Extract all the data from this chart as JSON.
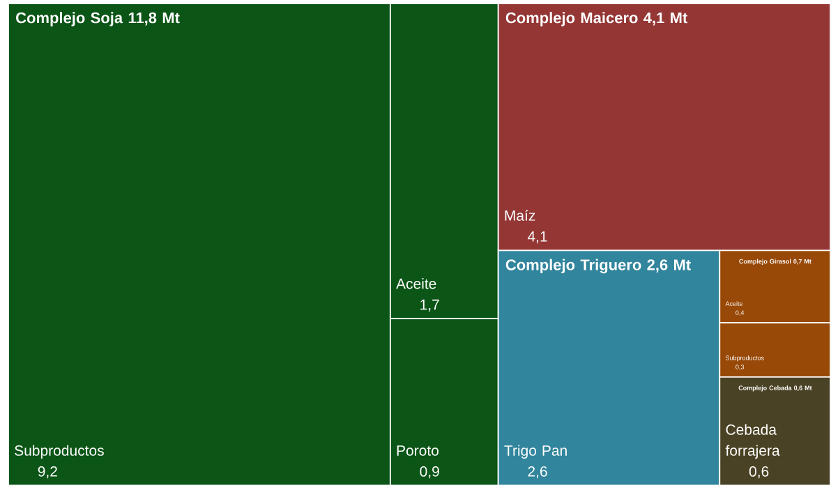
{
  "chart_data": {
    "type": "other",
    "categories": [
      "Subproductos",
      "Aceite",
      "Poroto",
      "Maíz",
      "Trigo Pan",
      "Aceite",
      "Subproductos",
      "Cebada forrajera"
    ],
    "series": [
      {
        "name": "Complejo Soja 11,8 Mt",
        "color": "#0b5517",
        "values": [
          9.2,
          1.7,
          0.9,
          null,
          null,
          null,
          null,
          null
        ],
        "value_labels": [
          "9,2",
          "1,7",
          "0,9",
          null,
          null,
          null,
          null,
          null
        ]
      },
      {
        "name": "Complejo Maicero 4,1 Mt",
        "color": "#943634",
        "values": [
          null,
          null,
          null,
          4.1,
          null,
          null,
          null,
          null
        ],
        "value_labels": [
          null,
          null,
          null,
          "4,1",
          null,
          null,
          null,
          null
        ]
      },
      {
        "name": "Complejo Triguero 2,6 Mt",
        "color": "#31859c",
        "values": [
          null,
          null,
          null,
          null,
          2.6,
          null,
          null,
          null
        ],
        "value_labels": [
          null,
          null,
          null,
          null,
          "2,6",
          null,
          null,
          null
        ]
      },
      {
        "name": "Complejo Girasol 0,7 Mt",
        "color": "#984807",
        "values": [
          null,
          null,
          null,
          null,
          null,
          0.4,
          0.3,
          null
        ],
        "value_labels": [
          null,
          null,
          null,
          null,
          null,
          "0,4",
          "0,3",
          null
        ]
      },
      {
        "name": "Complejo Cebada 0,6 Mt",
        "color": "#4a4224",
        "values": [
          null,
          null,
          null,
          null,
          null,
          null,
          null,
          0.6
        ],
        "value_labels": [
          null,
          null,
          null,
          null,
          null,
          null,
          null,
          "0,6"
        ]
      }
    ]
  }
}
